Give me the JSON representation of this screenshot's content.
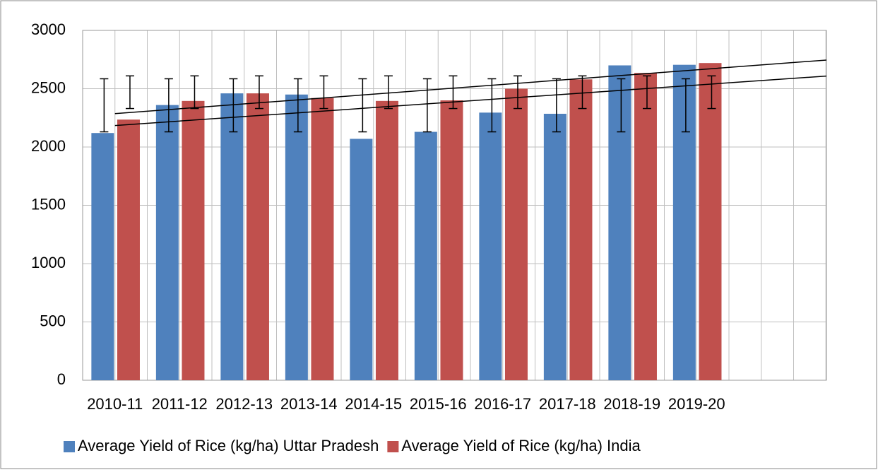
{
  "chart_data": {
    "type": "bar",
    "categories": [
      "2010-11",
      "2011-12",
      "2012-13",
      "2013-14",
      "2014-15",
      "2015-16",
      "2016-17",
      "2017-18",
      "2018-19",
      "2019-20"
    ],
    "series": [
      {
        "name": "Average Yield of Rice (kg/ha) Uttar Pradesh",
        "color": "#4f81bd",
        "values": [
          2120,
          2360,
          2460,
          2450,
          2070,
          2130,
          2295,
          2285,
          2700,
          2705
        ],
        "error_bars": [
          2130,
          2585
        ]
      },
      {
        "name": "Average Yield of Rice (kg/ha) India",
        "color": "#c0504d",
        "values": [
          2235,
          2395,
          2460,
          2420,
          2395,
          2400,
          2500,
          2580,
          2635,
          2720
        ],
        "error_bars": [
          2330,
          2610
        ]
      }
    ],
    "ylim": [
      0,
      3000
    ],
    "yticks": [
      0,
      500,
      1000,
      1500,
      2000,
      2500,
      3000
    ],
    "grid": true,
    "trendline": "linear",
    "legend": "bottom"
  }
}
